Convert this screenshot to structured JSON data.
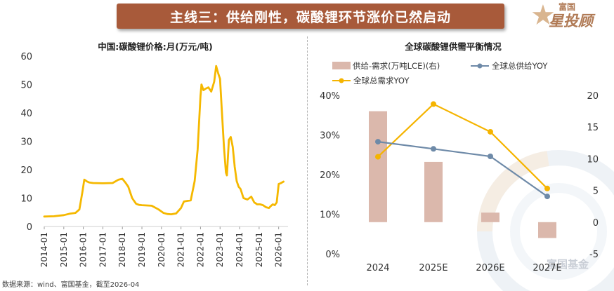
{
  "banner": {
    "title": "主线三：供给刚性，碳酸锂环节涨价已然启动"
  },
  "logo": {
    "top": "富国",
    "main": "星投顾"
  },
  "watermark": "富国基金",
  "source": "数据来源：wind、富国基金，截至2026-04",
  "colors": {
    "price_line": "#f5b800",
    "bar": "#dbb8ac",
    "supply": "#6e8aa8",
    "demand": "#f5b400",
    "banner": "#a85a3a"
  },
  "chart_data": [
    {
      "type": "line",
      "title": "中国:碳酸锂价格:月(万元/吨)",
      "xlabel": "",
      "ylabel": "",
      "ylim": [
        0,
        60
      ],
      "yticks": [
        0,
        10,
        20,
        30,
        40,
        50,
        60
      ],
      "xticks": [
        "2014-01",
        "2015-01",
        "2016-01",
        "2017-01",
        "2018-01",
        "2019-01",
        "2020-01",
        "2021-01",
        "2022-01",
        "2023-01",
        "2024-01",
        "2025-01",
        "2026-01"
      ],
      "series": [
        {
          "name": "中国:碳酸锂价格",
          "x": [
            2014.0,
            2014.5,
            2015.0,
            2015.3,
            2015.6,
            2015.8,
            2015.95,
            2016.05,
            2016.2,
            2016.3,
            2016.5,
            2017.0,
            2017.5,
            2017.8,
            2018.0,
            2018.15,
            2018.3,
            2018.5,
            2018.7,
            2018.85,
            2019.0,
            2019.5,
            2019.85,
            2020.1,
            2020.3,
            2020.5,
            2020.75,
            2021.0,
            2021.15,
            2021.3,
            2021.5,
            2021.7,
            2021.85,
            2022.0,
            2022.05,
            2022.15,
            2022.25,
            2022.4,
            2022.55,
            2022.7,
            2022.8,
            2022.9,
            2023.0,
            2023.08,
            2023.2,
            2023.3,
            2023.35,
            2023.45,
            2023.55,
            2023.65,
            2023.75,
            2023.85,
            2023.95,
            2024.05,
            2024.2,
            2024.4,
            2024.6,
            2024.75,
            2024.9,
            2025.05,
            2025.2,
            2025.35,
            2025.5,
            2025.6,
            2025.7,
            2025.8,
            2025.9,
            2026.0,
            2026.1,
            2026.25
          ],
          "values": [
            3.5,
            3.6,
            4.0,
            4.5,
            4.8,
            6.0,
            12.0,
            16.5,
            15.8,
            15.5,
            15.3,
            15.2,
            15.3,
            16.5,
            16.8,
            15.5,
            14.0,
            10.0,
            8.0,
            7.6,
            7.5,
            7.3,
            6.0,
            4.8,
            4.4,
            4.3,
            4.6,
            6.5,
            8.8,
            9.0,
            9.2,
            16.0,
            27.0,
            46.0,
            50.0,
            48.0,
            48.5,
            49.0,
            47.5,
            51.0,
            56.5,
            54.0,
            52.0,
            42.0,
            28.0,
            19.0,
            18.0,
            30.5,
            31.5,
            28.0,
            21.0,
            16.0,
            14.0,
            13.2,
            10.0,
            9.5,
            10.5,
            8.5,
            7.8,
            7.8,
            7.5,
            6.8,
            6.5,
            7.2,
            7.8,
            7.5,
            8.5,
            15.0,
            15.2,
            15.8
          ]
        }
      ]
    },
    {
      "type": "bar+line",
      "title": "全球碳酸锂供需平衡情况",
      "categories": [
        "2024",
        "2025E",
        "2026E",
        "2027E"
      ],
      "left_axis": {
        "ylim": [
          0,
          40
        ],
        "ticks": [
          "0%",
          "10%",
          "20%",
          "30%",
          "40%"
        ]
      },
      "right_axis": {
        "ylim": [
          -5,
          20
        ],
        "ticks": [
          "-5",
          "0",
          "5",
          "10",
          "15",
          "20"
        ]
      },
      "series": [
        {
          "name": "供给-需求(万吨LCE)(右)",
          "kind": "bar",
          "axis": "right",
          "values": [
            17.5,
            9.5,
            1.5,
            -2.5
          ]
        },
        {
          "name": "全球总供给YOY",
          "kind": "line",
          "axis": "left",
          "values": [
            28.3,
            26.5,
            24.6,
            14.5
          ]
        },
        {
          "name": "全球总需求YOY",
          "kind": "line",
          "axis": "left",
          "values": [
            24.5,
            37.8,
            30.8,
            16.5
          ]
        }
      ]
    }
  ]
}
